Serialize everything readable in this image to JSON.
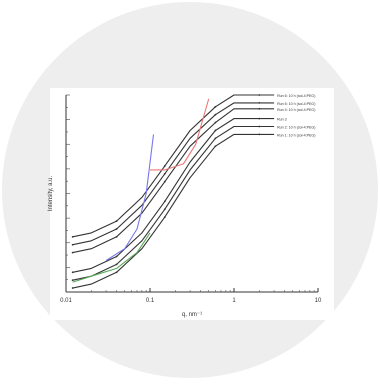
{
  "chart_data": {
    "type": "line",
    "x_scale": "log",
    "y_scale": "log",
    "xlabel": "q, nm⁻¹",
    "ylabel": "Intensity, a.u.",
    "x_ticks": [
      "0.01",
      "0.1",
      "1",
      "10"
    ],
    "xlim": [
      0.01,
      10
    ],
    "grid": false,
    "series": [
      {
        "name": "Run 1: 10 h (sol-4:PEG)",
        "color": "#333333",
        "x": [
          0.012,
          0.02,
          0.04,
          0.08,
          0.15,
          0.3,
          0.6,
          1.0,
          2.0,
          3.0
        ],
        "rel": [
          0.02,
          0.04,
          0.1,
          0.22,
          0.38,
          0.58,
          0.74,
          0.8,
          0.8,
          0.8
        ]
      },
      {
        "name": "Run 2: 10 h (sol-4:PEG)",
        "color": "#333333",
        "x": [
          0.012,
          0.02,
          0.04,
          0.08,
          0.15,
          0.3,
          0.6,
          1.0,
          2.0,
          3.0
        ],
        "rel": [
          0.06,
          0.08,
          0.14,
          0.26,
          0.42,
          0.62,
          0.78,
          0.84,
          0.84,
          0.84
        ]
      },
      {
        "name": "Run 3",
        "color": "#333333",
        "x": [
          0.012,
          0.02,
          0.04,
          0.08,
          0.15,
          0.3,
          0.6,
          1.0,
          2.0,
          3.0
        ],
        "rel": [
          0.1,
          0.12,
          0.18,
          0.3,
          0.46,
          0.66,
          0.82,
          0.88,
          0.88,
          0.88
        ]
      },
      {
        "name": "Run 4: 10 h (sol-4:PEG)",
        "color": "#333333",
        "x": [
          0.012,
          0.02,
          0.04,
          0.08,
          0.15,
          0.3,
          0.6,
          1.0,
          2.0,
          3.0
        ],
        "rel": [
          0.2,
          0.22,
          0.28,
          0.4,
          0.56,
          0.74,
          0.86,
          0.93,
          0.93,
          0.93
        ]
      },
      {
        "name": "Run 5: 10 h (sol-4:PEG)",
        "color": "#333333",
        "x": [
          0.012,
          0.02,
          0.04,
          0.08,
          0.15,
          0.3,
          0.6,
          1.0,
          2.0,
          3.0
        ],
        "rel": [
          0.24,
          0.26,
          0.32,
          0.44,
          0.6,
          0.78,
          0.9,
          0.96,
          0.96,
          0.96
        ]
      },
      {
        "name": "Run 6: 10 h (sol-4:PEG)",
        "color": "#333333",
        "x": [
          0.012,
          0.02,
          0.04,
          0.08,
          0.15,
          0.3,
          0.6,
          1.0,
          2.0,
          3.0
        ],
        "rel": [
          0.28,
          0.3,
          0.36,
          0.48,
          0.64,
          0.82,
          0.94,
          1.0,
          1.0,
          1.0
        ]
      },
      {
        "name": "green",
        "color": "#55aa55",
        "x": [
          0.012,
          0.02,
          0.04,
          0.07,
          0.1
        ],
        "rel": [
          0.05,
          0.08,
          0.12,
          0.2,
          0.3
        ]
      },
      {
        "name": "blue",
        "color": "#7777ee",
        "x": [
          0.03,
          0.05,
          0.07,
          0.09,
          0.11
        ],
        "rel": [
          0.16,
          0.22,
          0.32,
          0.5,
          0.8
        ]
      },
      {
        "name": "red",
        "color": "#ee7777",
        "x": [
          0.1,
          0.15,
          0.25,
          0.35,
          0.5
        ],
        "rel": [
          0.62,
          0.62,
          0.65,
          0.75,
          0.98
        ]
      }
    ]
  }
}
